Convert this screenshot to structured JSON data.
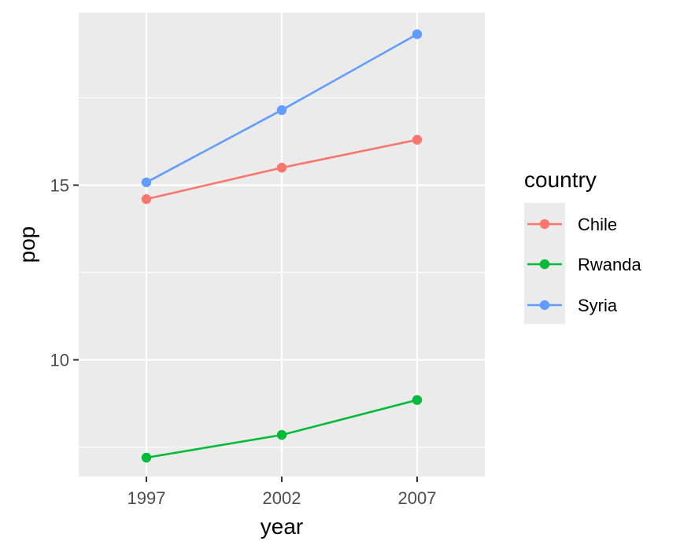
{
  "chart_data": {
    "type": "line",
    "xlabel": "year",
    "ylabel": "pop",
    "x": [
      1997,
      2002,
      2007
    ],
    "x_ticks": [
      "1997",
      "2002",
      "2007"
    ],
    "xlim": [
      1994.5,
      2009.5
    ],
    "ylim": [
      6.66,
      19.94
    ],
    "y_ticks": [
      10,
      15
    ],
    "y_tick_labels": [
      "10",
      "15"
    ],
    "y_minor_ticks": [
      7.5,
      12.5,
      17.5
    ],
    "grid": true,
    "legend": {
      "title": "country",
      "position": "right"
    },
    "series": [
      {
        "name": "Chile",
        "color": "#F8766D",
        "values": [
          14.6,
          15.5,
          16.3
        ]
      },
      {
        "name": "Rwanda",
        "color": "#00BA38",
        "values": [
          7.2,
          7.85,
          8.85
        ]
      },
      {
        "name": "Syria",
        "color": "#619CFF",
        "values": [
          15.08,
          17.15,
          19.32
        ]
      }
    ],
    "colors": {
      "panel_background": "#EBEBEB",
      "grid": "#FFFFFF",
      "tick_text": "#4D4D4D",
      "legend_key_background": "#EBEBEB"
    }
  }
}
